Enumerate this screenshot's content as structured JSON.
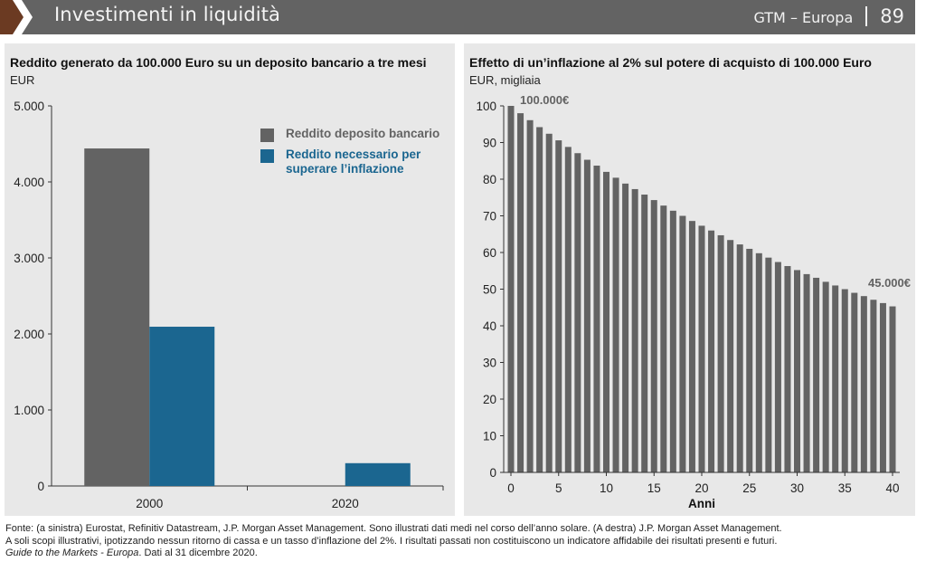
{
  "header": {
    "title": "Investimenti in liquidità",
    "subtitle": "GTM – Europa",
    "page_number": "89",
    "colors": {
      "bar": "#636363",
      "accent_chevron": "#6b3a22",
      "text": "#f4f4f4"
    }
  },
  "colors": {
    "panel_bg": "#e8e8e8",
    "gray_series": "#636363",
    "blue_series": "#1b6690",
    "axis": "#333333"
  },
  "left_panel": {
    "title": "Reddito generato da 100.000 Euro su un deposito bancario a tre mesi",
    "unit": "EUR"
  },
  "right_panel": {
    "title": "Effetto di un’inflazione al 2% sul potere di acquisto di 100.000 Euro",
    "unit": "EUR, migliaia"
  },
  "chart_data": [
    {
      "type": "bar",
      "title": "Reddito generato da 100.000 Euro su un deposito bancario a tre mesi",
      "ylabel": "EUR",
      "xlabel": "",
      "categories": [
        "2000",
        "2020"
      ],
      "series": [
        {
          "name": "Reddito deposito bancario",
          "color": "#636363",
          "values": [
            4440,
            0
          ]
        },
        {
          "name": "Reddito necessario per superare l’inflazione",
          "color": "#1b6690",
          "values": [
            2095,
            300
          ]
        }
      ],
      "ylim": [
        0,
        5000
      ],
      "yticks": [
        0,
        1000,
        2000,
        3000,
        4000,
        5000
      ],
      "ytick_labels": [
        "0",
        "1.000",
        "2.000",
        "3.000",
        "4.000",
        "5.000"
      ],
      "legend": {
        "position": "top-right",
        "labels": [
          "Reddito deposito bancario",
          "Reddito necessario per superare l’inflazione"
        ]
      },
      "grid": false
    },
    {
      "type": "bar",
      "title": "Effetto di un’inflazione al 2% sul potere di acquisto di 100.000 Euro",
      "ylabel": "EUR, migliaia",
      "xlabel": "Anni",
      "x": [
        0,
        1,
        2,
        3,
        4,
        5,
        6,
        7,
        8,
        9,
        10,
        11,
        12,
        13,
        14,
        15,
        16,
        17,
        18,
        19,
        20,
        21,
        22,
        23,
        24,
        25,
        26,
        27,
        28,
        29,
        30,
        31,
        32,
        33,
        34,
        35,
        36,
        37,
        38,
        39,
        40
      ],
      "values": [
        100.0,
        98.0,
        96.1,
        94.2,
        92.4,
        90.6,
        88.8,
        87.1,
        85.3,
        83.7,
        82.0,
        80.4,
        78.8,
        77.3,
        75.8,
        74.3,
        72.8,
        71.4,
        70.0,
        68.6,
        67.3,
        66.0,
        64.7,
        63.4,
        62.2,
        61.0,
        59.8,
        58.6,
        57.4,
        56.3,
        55.2,
        54.1,
        53.1,
        52.0,
        51.0,
        50.0,
        49.0,
        48.1,
        47.1,
        46.2,
        45.3
      ],
      "ylim": [
        0,
        100
      ],
      "yticks": [
        0,
        10,
        20,
        30,
        40,
        50,
        60,
        70,
        80,
        90,
        100
      ],
      "ytick_labels": [
        "0",
        "10",
        "20",
        "30",
        "40",
        "50",
        "60",
        "70",
        "80",
        "90",
        "100"
      ],
      "xticks": [
        0,
        5,
        10,
        15,
        20,
        25,
        30,
        35,
        40
      ],
      "xtick_labels": [
        "0",
        "5",
        "10",
        "15",
        "20",
        "25",
        "30",
        "35",
        "40"
      ],
      "annotations": [
        {
          "text": "100.000€",
          "x": 0,
          "y": 100
        },
        {
          "text": "45.000€",
          "x": 40,
          "y": 45
        }
      ],
      "grid": false
    }
  ],
  "footer": {
    "text_part1": "Fonte: (a sinistra) Eurostat, Refinitiv Datastream, J.P. Morgan Asset Management. Sono illustrati dati medi nel corso dell’anno solare. (A destra) J.P. Morgan Asset Management. A soli scopi illustrativi, ipotizzando nessun ritorno di cassa e un tasso d’inflazione del 2%. I risultati passati non costituiscono un indicatore affidabile dei risultati presenti e futuri. ",
    "text_italic": "Guide to the Markets - Europa",
    "text_part2": ". Dati al 31 dicembre 2020."
  }
}
